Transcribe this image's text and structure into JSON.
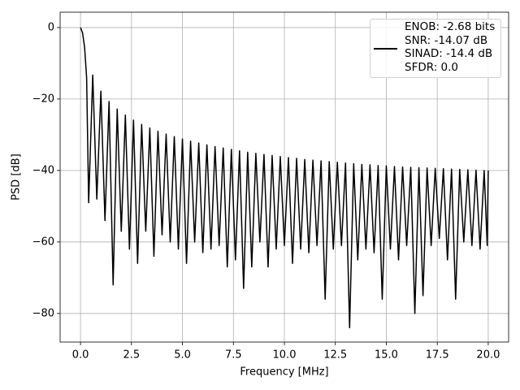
{
  "chart_data": {
    "type": "line",
    "xlabel": "Frequency [MHz]",
    "ylabel": "PSD [dB]",
    "xlim": [
      -1,
      21
    ],
    "ylim": [
      -88,
      4.3
    ],
    "xticks": [
      {
        "value": 0,
        "label": "0.0"
      },
      {
        "value": 2.5,
        "label": "2.5"
      },
      {
        "value": 5,
        "label": "5.0"
      },
      {
        "value": 7.5,
        "label": "7.5"
      },
      {
        "value": 10,
        "label": "10.0"
      },
      {
        "value": 12.5,
        "label": "12.5"
      },
      {
        "value": 15,
        "label": "15.0"
      },
      {
        "value": 17.5,
        "label": "17.5"
      },
      {
        "value": 20,
        "label": "20.0"
      }
    ],
    "yticks": [
      0,
      {
        "value": -20,
        "label": "−20"
      },
      {
        "value": -40,
        "label": "−40"
      },
      {
        "value": -60,
        "label": "−60"
      },
      {
        "value": -80,
        "label": "−80"
      }
    ],
    "grid": true,
    "legend": "upper right",
    "series": [
      {
        "name": "ENOB: -2.68 bits\nSNR: -14.07 dB\nSINAD: -14.4 dB\nSFDR: 0.0",
        "color": "#000000",
        "x": [
          0,
          0.1,
          0.2,
          0.3,
          0.4,
          0.6,
          0.8,
          1.0,
          1.2,
          1.4,
          1.6,
          1.8,
          2.0,
          2.2,
          2.4,
          2.6,
          2.8,
          3.0,
          3.2,
          3.4,
          3.6,
          3.8,
          4.0,
          4.2,
          4.4,
          4.6,
          4.8,
          5.0,
          5.2,
          5.4,
          5.6,
          5.8,
          6.0,
          6.2,
          6.4,
          6.6,
          6.8,
          7.0,
          7.2,
          7.4,
          7.6,
          7.8,
          8.0,
          8.2,
          8.4,
          8.6,
          8.8,
          9.0,
          9.2,
          9.4,
          9.6,
          9.8,
          10.0,
          10.2,
          10.4,
          10.6,
          10.8,
          11.0,
          11.2,
          11.4,
          11.6,
          11.8,
          12.0,
          12.2,
          12.4,
          12.6,
          12.8,
          13.0,
          13.2,
          13.4,
          13.6,
          13.8,
          14.0,
          14.2,
          14.4,
          14.6,
          14.8,
          15.0,
          15.2,
          15.4,
          15.6,
          15.8,
          16.0,
          16.2,
          16.4,
          16.6,
          16.8,
          17.0,
          17.2,
          17.4,
          17.6,
          17.8,
          18.0,
          18.2,
          18.4,
          18.6,
          18.8,
          19.0,
          19.2,
          19.4,
          19.6,
          19.8,
          19.95,
          20.0
        ],
        "values": [
          0,
          -1.5,
          -5.5,
          -14,
          -49,
          -13.3,
          -48,
          -17.8,
          -54,
          -20.7,
          -72,
          -22.8,
          -57,
          -24.5,
          -62,
          -25.9,
          -66,
          -27.1,
          -57,
          -28.1,
          -64,
          -29.0,
          -58,
          -29.8,
          -60,
          -30.5,
          -62,
          -31.2,
          -66,
          -31.8,
          -60,
          -32.3,
          -63,
          -32.8,
          -62,
          -33.3,
          -61,
          -33.7,
          -67,
          -34.1,
          -65,
          -34.5,
          -73,
          -34.9,
          -67,
          -35.2,
          -60,
          -35.5,
          -67,
          -35.8,
          -62,
          -36.1,
          -61,
          -36.4,
          -66,
          -36.6,
          -62,
          -36.9,
          -63,
          -37.1,
          -61,
          -37.3,
          -76,
          -37.5,
          -62,
          -37.7,
          -61,
          -37.9,
          -84,
          -38.1,
          -65,
          -38.3,
          -62,
          -38.4,
          -63,
          -38.6,
          -76,
          -38.7,
          -62,
          -38.9,
          -65,
          -39.0,
          -61,
          -39.1,
          -80,
          -39.2,
          -75,
          -39.3,
          -61,
          -39.4,
          -59,
          -39.5,
          -65,
          -39.6,
          -76,
          -39.7,
          -60,
          -39.8,
          -61,
          -39.9,
          -62,
          -40.0,
          -61,
          -40
        ]
      }
    ]
  }
}
